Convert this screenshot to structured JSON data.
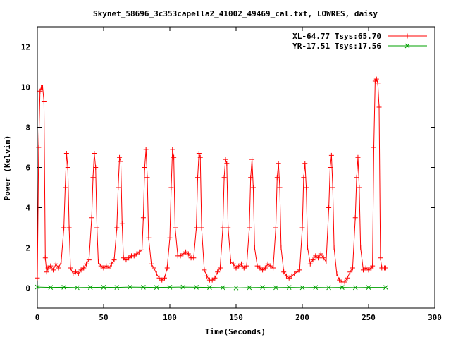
{
  "chart_data": {
    "type": "line",
    "title": "Skynet_58696_3c353capella2_41002_49469_cal.txt, LOWRES, daisy",
    "xlabel": "Time(Seconds)",
    "ylabel": "Power (Kelvin)",
    "xlim": [
      0,
      300
    ],
    "ylim": [
      -1,
      13
    ],
    "xticks": [
      0,
      50,
      100,
      150,
      200,
      250,
      300
    ],
    "yticks": [
      0,
      2,
      4,
      6,
      8,
      10,
      12
    ],
    "grid": false,
    "legend_position": "top-right",
    "series": [
      {
        "name": "XL-64.77 Tsys:65.70",
        "color": "#ff0000",
        "marker": "+",
        "points": [
          [
            0,
            0.5
          ],
          [
            1,
            7.0
          ],
          [
            2,
            9.8
          ],
          [
            3,
            10.0
          ],
          [
            4,
            10.0
          ],
          [
            5,
            9.3
          ],
          [
            6,
            1.5
          ],
          [
            7,
            0.8
          ],
          [
            8,
            1.0
          ],
          [
            10,
            1.1
          ],
          [
            12,
            0.9
          ],
          [
            14,
            1.2
          ],
          [
            16,
            1.0
          ],
          [
            18,
            1.3
          ],
          [
            20,
            3.0
          ],
          [
            21,
            5.0
          ],
          [
            22,
            6.7
          ],
          [
            23,
            6.0
          ],
          [
            24,
            3.0
          ],
          [
            25,
            1.0
          ],
          [
            27,
            0.7
          ],
          [
            29,
            0.8
          ],
          [
            31,
            0.7
          ],
          [
            33,
            0.9
          ],
          [
            35,
            1.0
          ],
          [
            37,
            1.2
          ],
          [
            39,
            1.4
          ],
          [
            41,
            3.5
          ],
          [
            42,
            5.5
          ],
          [
            43,
            6.7
          ],
          [
            44,
            6.0
          ],
          [
            45,
            3.0
          ],
          [
            46,
            1.3
          ],
          [
            48,
            1.1
          ],
          [
            50,
            1.0
          ],
          [
            52,
            1.1
          ],
          [
            54,
            1.0
          ],
          [
            56,
            1.2
          ],
          [
            58,
            1.4
          ],
          [
            60,
            3.0
          ],
          [
            61,
            5.0
          ],
          [
            62,
            6.5
          ],
          [
            63,
            6.3
          ],
          [
            64,
            3.2
          ],
          [
            65,
            1.5
          ],
          [
            67,
            1.4
          ],
          [
            69,
            1.5
          ],
          [
            71,
            1.6
          ],
          [
            73,
            1.6
          ],
          [
            75,
            1.7
          ],
          [
            77,
            1.8
          ],
          [
            79,
            1.9
          ],
          [
            80,
            3.5
          ],
          [
            81,
            6.0
          ],
          [
            82,
            6.9
          ],
          [
            83,
            5.5
          ],
          [
            84,
            2.5
          ],
          [
            86,
            1.2
          ],
          [
            88,
            1.0
          ],
          [
            90,
            0.7
          ],
          [
            92,
            0.5
          ],
          [
            94,
            0.4
          ],
          [
            96,
            0.5
          ],
          [
            98,
            1.0
          ],
          [
            100,
            2.5
          ],
          [
            101,
            5.0
          ],
          [
            102,
            6.9
          ],
          [
            103,
            6.5
          ],
          [
            104,
            3.0
          ],
          [
            106,
            1.6
          ],
          [
            108,
            1.6
          ],
          [
            110,
            1.7
          ],
          [
            112,
            1.8
          ],
          [
            114,
            1.7
          ],
          [
            116,
            1.5
          ],
          [
            118,
            1.5
          ],
          [
            120,
            3.0
          ],
          [
            121,
            5.5
          ],
          [
            122,
            6.7
          ],
          [
            123,
            6.5
          ],
          [
            124,
            3.0
          ],
          [
            126,
            0.9
          ],
          [
            128,
            0.6
          ],
          [
            130,
            0.4
          ],
          [
            132,
            0.4
          ],
          [
            134,
            0.5
          ],
          [
            136,
            0.8
          ],
          [
            138,
            1.0
          ],
          [
            140,
            3.0
          ],
          [
            141,
            5.5
          ],
          [
            142,
            6.4
          ],
          [
            143,
            6.2
          ],
          [
            144,
            3.0
          ],
          [
            146,
            1.3
          ],
          [
            148,
            1.2
          ],
          [
            150,
            1.0
          ],
          [
            152,
            1.1
          ],
          [
            154,
            1.2
          ],
          [
            156,
            1.0
          ],
          [
            158,
            1.1
          ],
          [
            160,
            3.0
          ],
          [
            161,
            5.5
          ],
          [
            162,
            6.4
          ],
          [
            163,
            5.0
          ],
          [
            164,
            2.0
          ],
          [
            166,
            1.1
          ],
          [
            168,
            1.0
          ],
          [
            170,
            0.9
          ],
          [
            172,
            1.0
          ],
          [
            174,
            1.2
          ],
          [
            176,
            1.1
          ],
          [
            178,
            1.0
          ],
          [
            180,
            3.0
          ],
          [
            181,
            5.5
          ],
          [
            182,
            6.2
          ],
          [
            183,
            5.0
          ],
          [
            184,
            2.0
          ],
          [
            186,
            0.8
          ],
          [
            188,
            0.6
          ],
          [
            190,
            0.5
          ],
          [
            192,
            0.6
          ],
          [
            194,
            0.7
          ],
          [
            196,
            0.8
          ],
          [
            198,
            0.9
          ],
          [
            200,
            3.0
          ],
          [
            201,
            5.5
          ],
          [
            202,
            6.2
          ],
          [
            203,
            5.0
          ],
          [
            204,
            2.0
          ],
          [
            206,
            1.2
          ],
          [
            208,
            1.4
          ],
          [
            210,
            1.6
          ],
          [
            212,
            1.5
          ],
          [
            214,
            1.7
          ],
          [
            216,
            1.5
          ],
          [
            218,
            1.3
          ],
          [
            220,
            4.0
          ],
          [
            221,
            6.0
          ],
          [
            222,
            6.6
          ],
          [
            223,
            5.0
          ],
          [
            224,
            2.0
          ],
          [
            226,
            0.7
          ],
          [
            228,
            0.4
          ],
          [
            230,
            0.3
          ],
          [
            232,
            0.3
          ],
          [
            234,
            0.5
          ],
          [
            236,
            0.8
          ],
          [
            238,
            1.0
          ],
          [
            240,
            3.5
          ],
          [
            241,
            5.5
          ],
          [
            242,
            6.5
          ],
          [
            243,
            5.0
          ],
          [
            244,
            2.0
          ],
          [
            246,
            0.9
          ],
          [
            248,
            1.0
          ],
          [
            250,
            0.9
          ],
          [
            252,
            1.0
          ],
          [
            253,
            1.1
          ],
          [
            254,
            7.0
          ],
          [
            255,
            10.3
          ],
          [
            256,
            10.4
          ],
          [
            257,
            10.2
          ],
          [
            258,
            9.0
          ],
          [
            259,
            1.5
          ],
          [
            260,
            1.0
          ],
          [
            262,
            1.0
          ],
          [
            263,
            1.0
          ]
        ]
      },
      {
        "name": "YR-17.51 Tsys:17.56",
        "color": "#00a000",
        "marker": "x",
        "points": [
          [
            0,
            0.05
          ],
          [
            10,
            0.03
          ],
          [
            20,
            0.04
          ],
          [
            30,
            0.02
          ],
          [
            40,
            0.03
          ],
          [
            50,
            0.04
          ],
          [
            60,
            0.03
          ],
          [
            70,
            0.05
          ],
          [
            80,
            0.04
          ],
          [
            90,
            0.03
          ],
          [
            100,
            0.04
          ],
          [
            110,
            0.05
          ],
          [
            120,
            0.04
          ],
          [
            130,
            0.03
          ],
          [
            140,
            0.02
          ],
          [
            150,
            0.01
          ],
          [
            160,
            0.02
          ],
          [
            170,
            0.03
          ],
          [
            180,
            0.02
          ],
          [
            190,
            0.03
          ],
          [
            200,
            0.02
          ],
          [
            210,
            0.03
          ],
          [
            220,
            0.02
          ],
          [
            230,
            0.03
          ],
          [
            240,
            0.02
          ],
          [
            250,
            0.03
          ],
          [
            263,
            0.03
          ]
        ]
      }
    ]
  }
}
